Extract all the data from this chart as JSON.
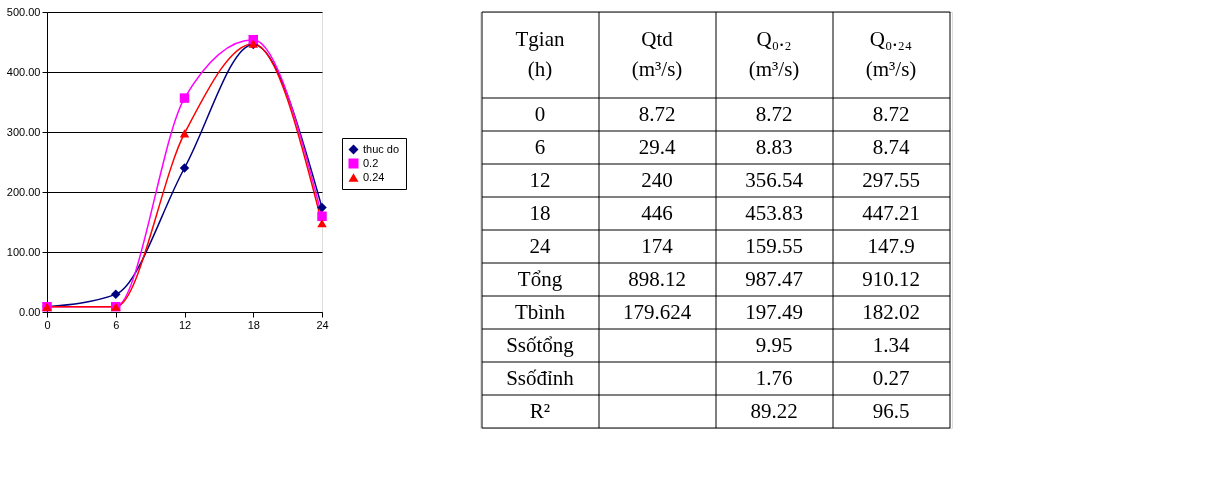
{
  "chart_data": {
    "type": "line",
    "x": [
      0,
      6,
      12,
      18,
      24
    ],
    "series": [
      {
        "name": "thuc do",
        "color": "#000080",
        "marker": "diamond",
        "values": [
          8.72,
          29.4,
          240,
          446,
          174
        ]
      },
      {
        "name": "0.2",
        "color": "#ff00ff",
        "marker": "square",
        "values": [
          8.72,
          8.83,
          356.54,
          453.83,
          159.55
        ]
      },
      {
        "name": "0.24",
        "color": "#ff0000",
        "marker": "triangle",
        "values": [
          8.72,
          8.74,
          297.55,
          447.21,
          147.9
        ]
      }
    ],
    "xlim": [
      0,
      24
    ],
    "xticks": [
      0,
      6,
      12,
      18,
      24
    ],
    "ylim": [
      0,
      500
    ],
    "yticks": [
      {
        "value": 0,
        "label": "0.00"
      },
      {
        "value": 100,
        "label": "100.00"
      },
      {
        "value": 200,
        "label": "200.00"
      },
      {
        "value": 300,
        "label": "300.00"
      },
      {
        "value": 400,
        "label": "400.00"
      },
      {
        "value": 500,
        "label": "500.00"
      }
    ],
    "grid": "y",
    "legend": "right",
    "annotations": [
      "Tgian (h)\tQtd (m³/s)\tQ₀.₂ (m³/s)\tQ₀.₂₄ (m³/s)",
      "0\t8.72\t8.72\t8.72",
      "6\t29.4\t8.83\t8.74",
      "12\t240\t356.54\t297.55",
      "18\t446\t453.83\t447.21",
      "24\t174\t159.55\t147.9",
      "Tổng\t898.12\t987.47\t910.12",
      "Tbình\t179.624\t197.49\t182.02",
      "Ssốtổng\t\t9.95\t1.34",
      "Ssốđỉnh\t\t1.76\t0.27",
      "R²\t\t89.22\t96.5"
    ]
  }
}
